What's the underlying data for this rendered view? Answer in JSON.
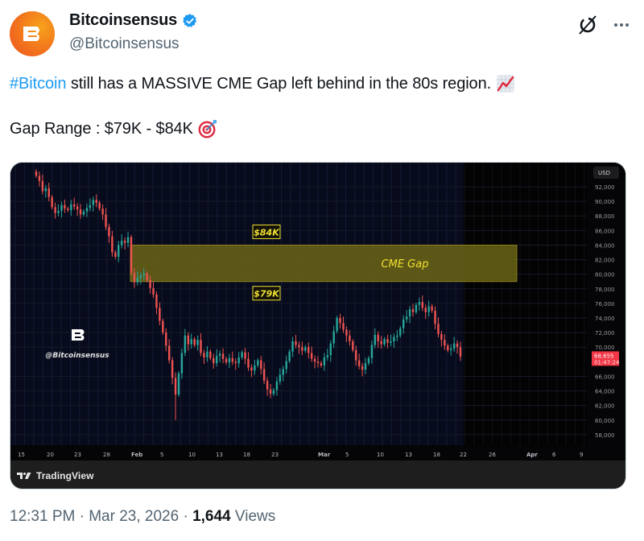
{
  "author": {
    "display_name": "Bitcoinsensus",
    "handle": "@Bitcoinsensus",
    "verified": true,
    "avatar_letter": "B",
    "avatar_colors": [
      "#f7a21b",
      "#ec5420"
    ]
  },
  "actions": {
    "grok_icon": "grok-icon",
    "more_icon": "more-icon"
  },
  "tweet": {
    "hashtag": "#Bitcoin",
    "line1_text": " still has a MASSIVE CME Gap left behind in the 80s region.",
    "line1_emoji": "chart-increasing-emoji",
    "line2_text": "Gap Range : $79K - $84K",
    "line2_emoji": "direct-hit-emoji"
  },
  "media": {
    "provider": "TradingView",
    "watermark": "@Bitcoinsensus"
  },
  "meta": {
    "time": "12:31 PM",
    "separator": " · ",
    "date": "Mar 23, 2026",
    "views_count": "1,644",
    "views_label": " Views"
  },
  "colors": {
    "up": "#26a69a",
    "down": "#ef5350",
    "gap_fill": "#6b6416",
    "gap_text": "#f0e030",
    "price_tag": "#f23645",
    "hashtag": "#1d9bf0"
  },
  "chart_data": {
    "type": "candlestick",
    "title": "",
    "currency_label": "USD",
    "y_ticks": [
      "92,000",
      "90,000",
      "88,000",
      "86,000",
      "84,000",
      "82,000",
      "80,000",
      "78,000",
      "76,000",
      "74,000",
      "72,000",
      "70,000",
      "66,000",
      "64,000",
      "62,000",
      "60,000",
      "58,000",
      "56,000"
    ],
    "ylim": [
      56000,
      93000
    ],
    "x_ticks": [
      "15",
      "20",
      "23",
      "28",
      "Feb",
      "5",
      "10",
      "13",
      "18",
      "23",
      "Mar",
      "5",
      "10",
      "13",
      "18",
      "22",
      "26",
      "Apr",
      "6",
      "9"
    ],
    "last_price": "68,655",
    "countdown": "01:47:24",
    "annotations": [
      {
        "type": "zone",
        "label": "CME Gap",
        "from": 79000,
        "to": 84000
      },
      {
        "type": "label",
        "text": "$84K",
        "value": 84000
      },
      {
        "type": "label",
        "text": "$79K",
        "value": 79000
      }
    ],
    "closes": [
      93500,
      92800,
      91400,
      91800,
      90600,
      89200,
      88400,
      88700,
      89500,
      89000,
      88800,
      89600,
      89300,
      88900,
      88200,
      88600,
      89100,
      89500,
      90200,
      89800,
      89000,
      88200,
      86500,
      85200,
      83000,
      82400,
      84000,
      84600,
      84300,
      85100,
      80200,
      78900,
      79500,
      79800,
      80100,
      79200,
      78100,
      77200,
      75400,
      73600,
      72000,
      70200,
      68200,
      65800,
      63500,
      66400,
      69200,
      71600,
      70400,
      71100,
      70300,
      71000,
      69200,
      68600,
      69400,
      68500,
      67800,
      68800,
      69100,
      68400,
      67900,
      68500,
      68000,
      67800,
      68600,
      69300,
      68400,
      67200,
      66800,
      67500,
      68200,
      67000,
      65400,
      64200,
      63600,
      64100,
      65300,
      66200,
      67000,
      68100,
      69400,
      70800,
      70300,
      70000,
      69500,
      70000,
      69200,
      68400,
      68000,
      67800,
      67500,
      68600,
      68900,
      70500,
      72200,
      74000,
      73300,
      72400,
      71600,
      70800,
      69600,
      68200,
      67400,
      66900,
      67800,
      68500,
      70300,
      71700,
      70800,
      70400,
      71100,
      70600,
      70800,
      71400,
      71600,
      72600,
      73800,
      74200,
      75200,
      74800,
      75800,
      76200,
      75400,
      74800,
      75600,
      75000,
      73200,
      71800,
      71000,
      70200,
      69600,
      69800,
      70500,
      70000,
      68700
    ]
  }
}
